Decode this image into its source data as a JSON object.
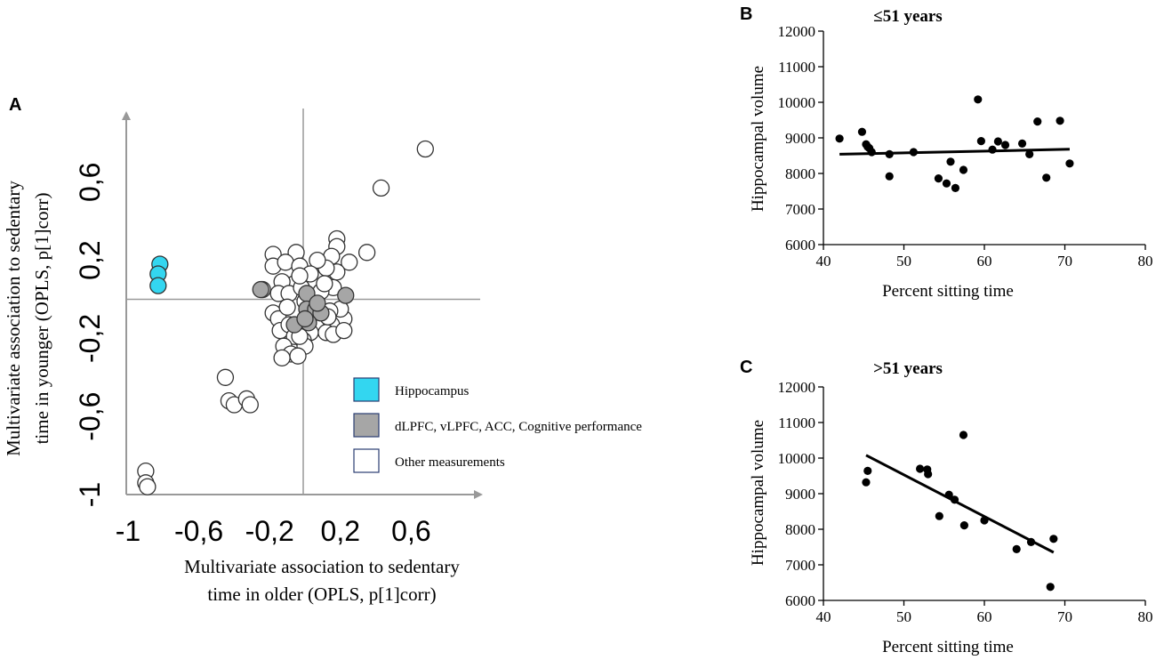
{
  "panel_labels": {
    "a": "A",
    "b": "B",
    "c": "C"
  },
  "chart_data": [
    {
      "id": "A",
      "type": "scatter",
      "title": "",
      "xlabel_lines": [
        "Multivariate association to sedentary",
        "time in older (OPLS, p[1]corr)"
      ],
      "ylabel_lines": [
        "Multivariate association to sedentary",
        "time in younger (OPLS, p[1]corr)"
      ],
      "xlim": [
        -1,
        1
      ],
      "ylim": [
        -1,
        0.95
      ],
      "xticks": [
        -1,
        -0.6,
        -0.2,
        0.2,
        0.6
      ],
      "xtick_labels": [
        "-1",
        "-0,6",
        "-0,2",
        "0,2",
        "0,6"
      ],
      "yticks": [
        -1,
        -0.6,
        -0.2,
        0.2,
        0.6
      ],
      "ytick_labels": [
        "-1",
        "-0,6",
        "-0,2",
        "0,2",
        "0,6"
      ],
      "legend": [
        {
          "label": "Hippocampus",
          "color": "#33d6f0"
        },
        {
          "label": "dLPFC, vLPFC, ACC, Cognitive performance",
          "color": "#a6a6a6"
        },
        {
          "label": "Other measurements",
          "color": "#ffffff"
        }
      ],
      "series": [
        {
          "name": "Hippocampus",
          "color": "#33d6f0",
          "points": [
            [
              -0.81,
              0.18
            ],
            [
              -0.82,
              0.13
            ],
            [
              -0.82,
              0.07
            ]
          ]
        },
        {
          "name": "dLPFC, vLPFC, ACC, Cognitive performance",
          "color": "#a6a6a6",
          "points": [
            [
              -0.24,
              0.05
            ],
            [
              0.24,
              0.02
            ],
            [
              0.02,
              0.03
            ],
            [
              0.02,
              -0.05
            ],
            [
              0.07,
              -0.05
            ],
            [
              0.1,
              -0.07
            ],
            [
              0.03,
              -0.12
            ],
            [
              -0.05,
              -0.13
            ],
            [
              0.01,
              -0.1
            ],
            [
              0.08,
              -0.02
            ]
          ]
        },
        {
          "name": "Other measurements",
          "color": "#ffffff",
          "points": [
            [
              0.69,
              0.77
            ],
            [
              0.44,
              0.57
            ],
            [
              0.36,
              0.24
            ],
            [
              0.19,
              0.31
            ],
            [
              0.19,
              0.27
            ],
            [
              0.26,
              0.19
            ],
            [
              0.19,
              0.14
            ],
            [
              0.16,
              0.22
            ],
            [
              0.13,
              0.16
            ],
            [
              -0.04,
              0.24
            ],
            [
              -0.17,
              0.23
            ],
            [
              -0.17,
              0.17
            ],
            [
              -0.1,
              0.19
            ],
            [
              0.08,
              0.2
            ],
            [
              -0.02,
              0.17
            ],
            [
              0.04,
              0.13
            ],
            [
              -0.05,
              0.08
            ],
            [
              -0.12,
              0.09
            ],
            [
              0.17,
              0.06
            ],
            [
              0.1,
              0.04
            ],
            [
              -0.14,
              0.03
            ],
            [
              -0.08,
              0.03
            ],
            [
              -0.01,
              0.06
            ],
            [
              -0.23,
              0.05
            ],
            [
              -0.17,
              -0.07
            ],
            [
              -0.14,
              -0.1
            ],
            [
              -0.09,
              -0.04
            ],
            [
              0.23,
              -0.1
            ],
            [
              0.21,
              -0.05
            ],
            [
              0.16,
              -0.13
            ],
            [
              0.13,
              -0.17
            ],
            [
              0.15,
              -0.06
            ],
            [
              -0.13,
              -0.16
            ],
            [
              -0.08,
              -0.13
            ],
            [
              0.04,
              -0.17
            ],
            [
              -0.05,
              -0.19
            ],
            [
              0.0,
              -0.21
            ],
            [
              0.01,
              -0.24
            ],
            [
              -0.11,
              -0.24
            ],
            [
              -0.07,
              -0.28
            ],
            [
              0.17,
              -0.18
            ],
            [
              0.23,
              -0.16
            ],
            [
              -0.12,
              -0.3
            ],
            [
              -0.03,
              -0.29
            ],
            [
              -0.02,
              -0.19
            ],
            [
              0.14,
              -0.09
            ],
            [
              0.01,
              -0.01
            ],
            [
              0.12,
              0.08
            ],
            [
              -0.02,
              0.12
            ],
            [
              -0.44,
              -0.4
            ],
            [
              -0.42,
              -0.52
            ],
            [
              -0.39,
              -0.54
            ],
            [
              -0.32,
              -0.51
            ],
            [
              -0.3,
              -0.54
            ],
            [
              -0.89,
              -0.88
            ],
            [
              -0.89,
              -0.94
            ],
            [
              -0.88,
              -0.96
            ]
          ]
        }
      ]
    },
    {
      "id": "B",
      "type": "scatter",
      "title": "≤51 years",
      "xlabel": "Percent sitting time",
      "ylabel": "Hippocampal volume",
      "xlim": [
        40,
        80
      ],
      "ylim": [
        6000,
        12000
      ],
      "xticks": [
        40,
        50,
        60,
        70,
        80
      ],
      "xtick_labels": [
        "40",
        "50",
        "60",
        "70",
        "80"
      ],
      "yticks": [
        6000,
        7000,
        8000,
        9000,
        10000,
        11000,
        12000
      ],
      "ytick_labels": [
        "6000",
        "7000",
        "8000",
        "9000",
        "10000",
        "11000",
        "12000"
      ],
      "points": [
        [
          42,
          8980
        ],
        [
          44.8,
          9170
        ],
        [
          45.3,
          8820
        ],
        [
          45.5,
          8750
        ],
        [
          45.7,
          8710
        ],
        [
          46,
          8600
        ],
        [
          48.2,
          8540
        ],
        [
          48.2,
          7920
        ],
        [
          51.2,
          8600
        ],
        [
          54.3,
          7860
        ],
        [
          55.3,
          7720
        ],
        [
          55.8,
          8330
        ],
        [
          56.4,
          7590
        ],
        [
          57.4,
          8100
        ],
        [
          59.2,
          10080
        ],
        [
          59.6,
          8910
        ],
        [
          61,
          8670
        ],
        [
          61.7,
          8900
        ],
        [
          62.6,
          8800
        ],
        [
          64.7,
          8840
        ],
        [
          65.6,
          8540
        ],
        [
          66.6,
          9460
        ],
        [
          67.7,
          7880
        ],
        [
          69.4,
          9480
        ],
        [
          70.6,
          8280
        ]
      ],
      "fit_line": [
        [
          42,
          8540
        ],
        [
          70.6,
          8680
        ]
      ]
    },
    {
      "id": "C",
      "type": "scatter",
      "title": ">51 years",
      "xlabel": "Percent sitting time",
      "ylabel": "Hippocampal volume",
      "xlim": [
        40,
        80
      ],
      "ylim": [
        6000,
        12000
      ],
      "xticks": [
        40,
        50,
        60,
        70,
        80
      ],
      "xtick_labels": [
        "40",
        "50",
        "60",
        "70",
        "80"
      ],
      "yticks": [
        6000,
        7000,
        8000,
        9000,
        10000,
        11000,
        12000
      ],
      "ytick_labels": [
        "6000",
        "7000",
        "8000",
        "9000",
        "10000",
        "11000",
        "12000"
      ],
      "points": [
        [
          45.3,
          9320
        ],
        [
          45.5,
          9640
        ],
        [
          52,
          9700
        ],
        [
          52.9,
          9680
        ],
        [
          53,
          9550
        ],
        [
          54.4,
          8370
        ],
        [
          55.6,
          8970
        ],
        [
          56.3,
          8830
        ],
        [
          57.4,
          10650
        ],
        [
          57.5,
          8110
        ],
        [
          60,
          8250
        ],
        [
          64,
          7440
        ],
        [
          65.8,
          7640
        ],
        [
          68.6,
          7730
        ],
        [
          68.2,
          6380
        ]
      ],
      "fit_line": [
        [
          45.3,
          10080
        ],
        [
          68.6,
          7350
        ]
      ]
    }
  ]
}
